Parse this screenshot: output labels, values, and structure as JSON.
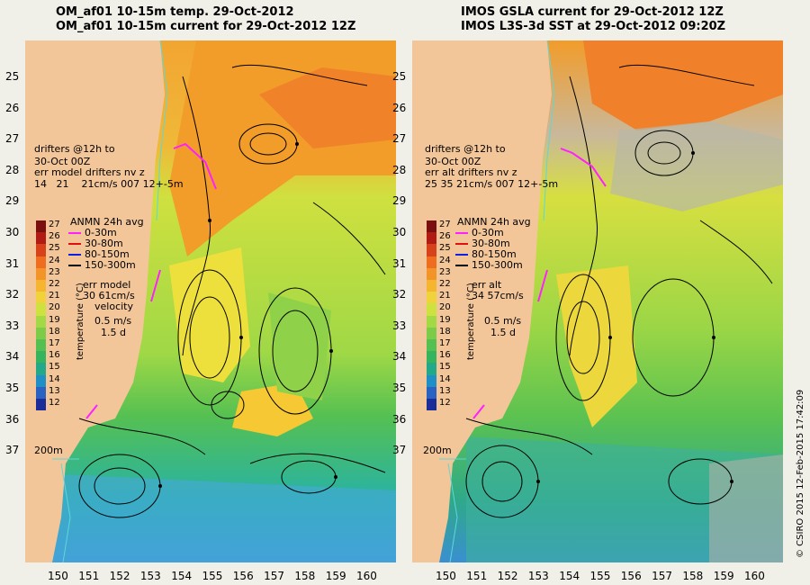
{
  "left": {
    "title1": "OM_af01 10-15m temp. 29-Oct-2012",
    "title2": "OM_af01 10-15m current for 29-Oct-2012 12Z",
    "drifters": [
      "drifters @12h to",
      "30-Oct 00Z",
      "err model drifters nv z",
      "14   21    21cm/s 007 12+-5m"
    ],
    "err_label": "err model",
    "err_value": "30 61cm/s"
  },
  "right": {
    "title1": "IMOS GSLA current for 29-Oct-2012 12Z",
    "title2": "IMOS L3S-3d SST at 29-Oct-2012 09:20Z",
    "drifters": [
      "drifters @12h to",
      "30-Oct 00Z",
      "err alt drifters nv z",
      "25 35 21cm/s 007 12+-5m"
    ],
    "err_label": "err alt",
    "err_value": "34 57cm/s"
  },
  "colorbar": {
    "ticks": [
      "27",
      "26",
      "25",
      "24",
      "23",
      "22",
      "21",
      "20",
      "19",
      "18",
      "17",
      "16",
      "15",
      "14",
      "13",
      "12"
    ],
    "label": "temperature (°C)",
    "colors": [
      "#7a1010",
      "#b01b14",
      "#d8421a",
      "#ee6d1e",
      "#f29428",
      "#f6b52e",
      "#f0d23a",
      "#cde13f",
      "#a3d944",
      "#7ccc4a",
      "#55c052",
      "#34b45c",
      "#22a989",
      "#1f8fc5",
      "#2a62c4",
      "#1c2d9a"
    ]
  },
  "legend": {
    "title": "ANMN 24h avg",
    "items": [
      {
        "label": "0-30m",
        "color": "#ff20ff"
      },
      {
        "label": "30-80m",
        "color": "#e01010"
      },
      {
        "label": "80-150m",
        "color": "#1020e0"
      },
      {
        "label": "150-300m",
        "color": "#000000"
      }
    ]
  },
  "velocity": {
    "label": "velocity",
    "scale": "0.5 m/s",
    "time": "1.5 d"
  },
  "isobath_label": "200m",
  "lat_labels": [
    "25",
    "26",
    "27",
    "28",
    "29",
    "30",
    "31",
    "32",
    "33",
    "34",
    "35",
    "36",
    "37"
  ],
  "lon_labels": [
    "150",
    "151",
    "152",
    "153",
    "154",
    "155",
    "156",
    "157",
    "158",
    "159",
    "160"
  ],
  "credit": "© CSIRO 2015   12-Feb-2015 17:42:09"
}
